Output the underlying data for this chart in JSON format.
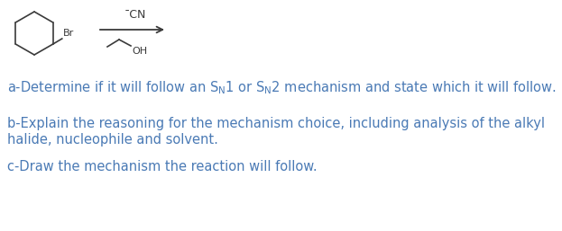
{
  "bg_color": "#ffffff",
  "text_color": "#3a3a3a",
  "blue_color": "#4a7ab5",
  "label_cn": "¯CN",
  "label_br": "Br",
  "label_oh": "OH",
  "line_a": "a-Determine if it will follow an $S_{N}$1 or $S_{N}$2 mechanism and state which it will follow.",
  "line_b1": "b-Explain the reasoning for the mechanism choice, including analysis of the alkyl",
  "line_b2": "halide, nucleophile and solvent.",
  "line_c": "c-Draw the mechanism the reaction will follow.",
  "figsize": [
    6.23,
    2.57
  ],
  "dpi": 100
}
